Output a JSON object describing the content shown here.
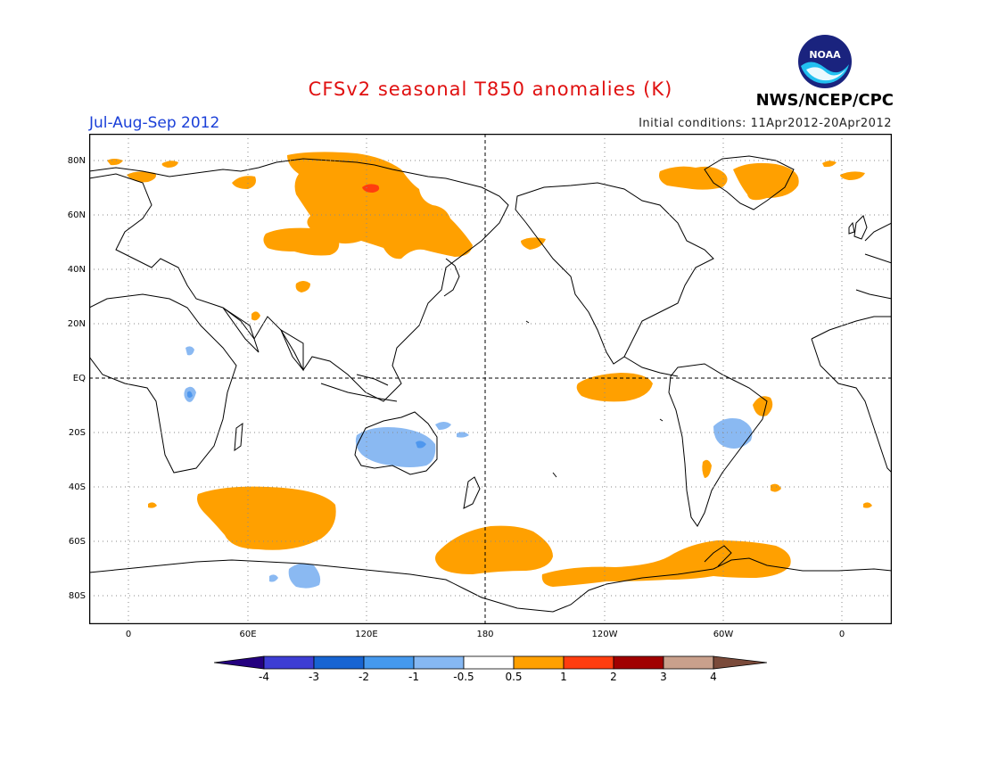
{
  "header": {
    "title": "CFSv2 seasonal T850 anomalies (K)",
    "period": "Jul-Aug-Sep 2012",
    "initial_conditions": "Initial conditions: 11Apr2012-20Apr2012",
    "agency": "NWS/NCEP/CPC",
    "logo_text": "NOAA"
  },
  "map": {
    "lat_labels": [
      "80N",
      "60N",
      "40N",
      "20N",
      "EQ",
      "20S",
      "40S",
      "60S",
      "80S"
    ],
    "lon_labels": [
      "0",
      "60E",
      "120E",
      "180",
      "120W",
      "60W",
      "0"
    ],
    "colors": {
      "warm_0_5_1": "#ffa000",
      "warm_1_2": "#ff3d0f",
      "cool_neg0_5_neg1": "#8ab9f2",
      "cool_neg1_neg2": "#4e97ee",
      "land_outline": "#000000"
    }
  },
  "colorbar": {
    "labels": [
      "-4",
      "-3",
      "-2",
      "-1",
      "-0.5",
      "0.5",
      "1",
      "2",
      "3",
      "4"
    ],
    "colors": [
      "#24007f",
      "#3d3dd4",
      "#1764d2",
      "#4599ee",
      "#86b8f3",
      "#ffffff",
      "#ffa000",
      "#ff3d0f",
      "#a00000",
      "#c9a08c",
      "#7a4a3a"
    ]
  }
}
